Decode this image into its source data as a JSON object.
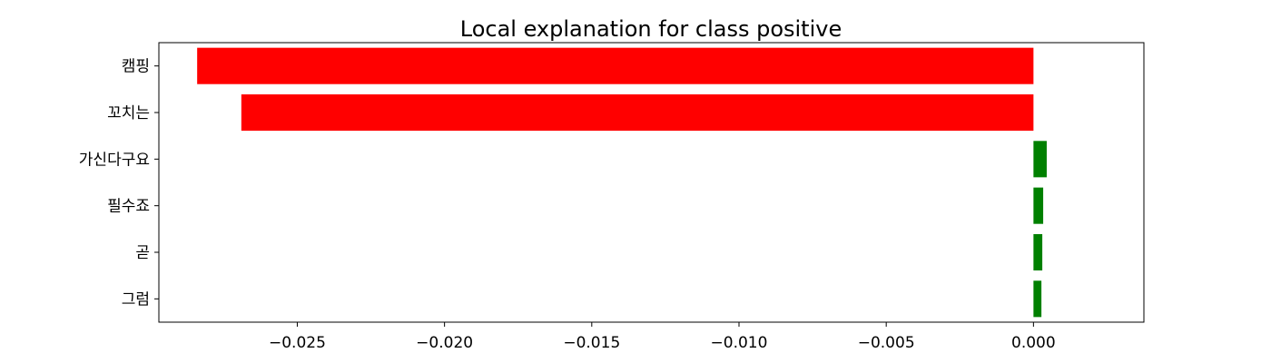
{
  "chart_data": {
    "type": "bar",
    "orientation": "horizontal",
    "title": "Local explanation for class positive",
    "xlabel": "",
    "ylabel": "",
    "categories": [
      "캠핑",
      "꼬치는",
      "가신다구요",
      "필수죠",
      "곧",
      "그럼"
    ],
    "values": [
      -0.0284,
      -0.0269,
      0.00045,
      0.00033,
      0.0003,
      0.00027
    ],
    "xlim": [
      -0.0297,
      0.00375
    ],
    "xticks": [
      -0.025,
      -0.02,
      -0.015,
      -0.01,
      -0.005,
      0.0
    ],
    "xtick_labels": [
      "−0.025",
      "−0.020",
      "−0.015",
      "−0.010",
      "−0.005",
      "0.000"
    ],
    "grid": false,
    "colors": {
      "positive": "#008000",
      "negative": "#ff0000"
    }
  }
}
